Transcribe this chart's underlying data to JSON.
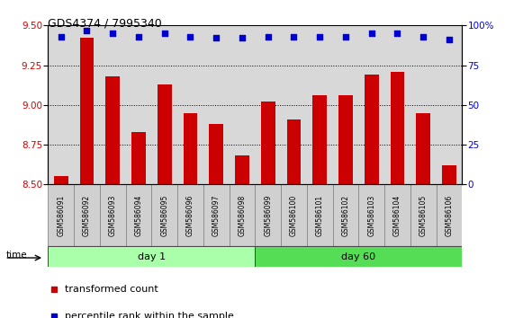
{
  "title": "GDS4374 / 7995340",
  "samples": [
    "GSM586091",
    "GSM586092",
    "GSM586093",
    "GSM586094",
    "GSM586095",
    "GSM586096",
    "GSM586097",
    "GSM586098",
    "GSM586099",
    "GSM586100",
    "GSM586101",
    "GSM586102",
    "GSM586103",
    "GSM586104",
    "GSM586105",
    "GSM586106"
  ],
  "bar_values": [
    8.55,
    9.42,
    9.18,
    8.83,
    9.13,
    8.95,
    8.88,
    8.68,
    9.02,
    8.91,
    9.06,
    9.06,
    9.19,
    9.21,
    8.95,
    8.62
  ],
  "dot_values": [
    93,
    97,
    95,
    93,
    95,
    93,
    92,
    92,
    93,
    93,
    93,
    93,
    95,
    95,
    93,
    91
  ],
  "bar_color": "#cc0000",
  "dot_color": "#0000cc",
  "ylim_left": [
    8.5,
    9.5
  ],
  "ylim_right": [
    0,
    100
  ],
  "yticks_left": [
    8.5,
    8.75,
    9.0,
    9.25,
    9.5
  ],
  "yticks_right": [
    0,
    25,
    50,
    75,
    100
  ],
  "groups": [
    {
      "label": "day 1",
      "start": 0,
      "end": 8,
      "color": "#aaffaa"
    },
    {
      "label": "day 60",
      "start": 8,
      "end": 16,
      "color": "#55dd55"
    }
  ],
  "xlabel": "time",
  "legend": [
    {
      "label": "transformed count",
      "color": "#cc0000"
    },
    {
      "label": "percentile rank within the sample",
      "color": "#0000cc"
    }
  ],
  "background_color": "#ffffff",
  "plot_bg_color": "#d8d8d8",
  "label_box_color": "#d0d0d0",
  "label_box_edge": "#888888"
}
